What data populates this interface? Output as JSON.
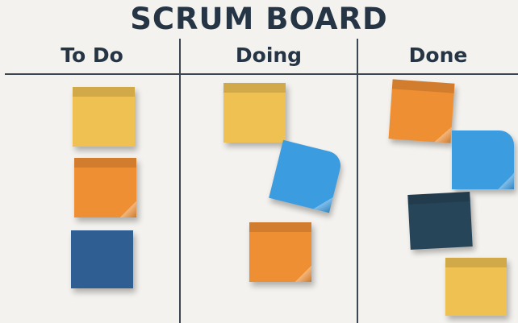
{
  "board": {
    "title": "SCRUM BOARD",
    "columns": [
      {
        "label": "To Do"
      },
      {
        "label": "Doing"
      },
      {
        "label": "Done"
      }
    ]
  },
  "colors": {
    "yellow": "#efc153",
    "orange": "#ef8f34",
    "blue": "#3c9ce0",
    "navy": "#2f5f92",
    "dark": "#274559",
    "ink": "#263545",
    "background": "#f4f2ee"
  },
  "notes": [
    {
      "column": "To Do",
      "color": "yellow"
    },
    {
      "column": "To Do",
      "color": "orange"
    },
    {
      "column": "To Do",
      "color": "navy"
    },
    {
      "column": "Doing",
      "color": "yellow"
    },
    {
      "column": "Doing",
      "color": "blue"
    },
    {
      "column": "Doing",
      "color": "orange"
    },
    {
      "column": "Done",
      "color": "orange"
    },
    {
      "column": "Done",
      "color": "blue"
    },
    {
      "column": "Done",
      "color": "dark"
    },
    {
      "column": "Done",
      "color": "yellow"
    }
  ]
}
